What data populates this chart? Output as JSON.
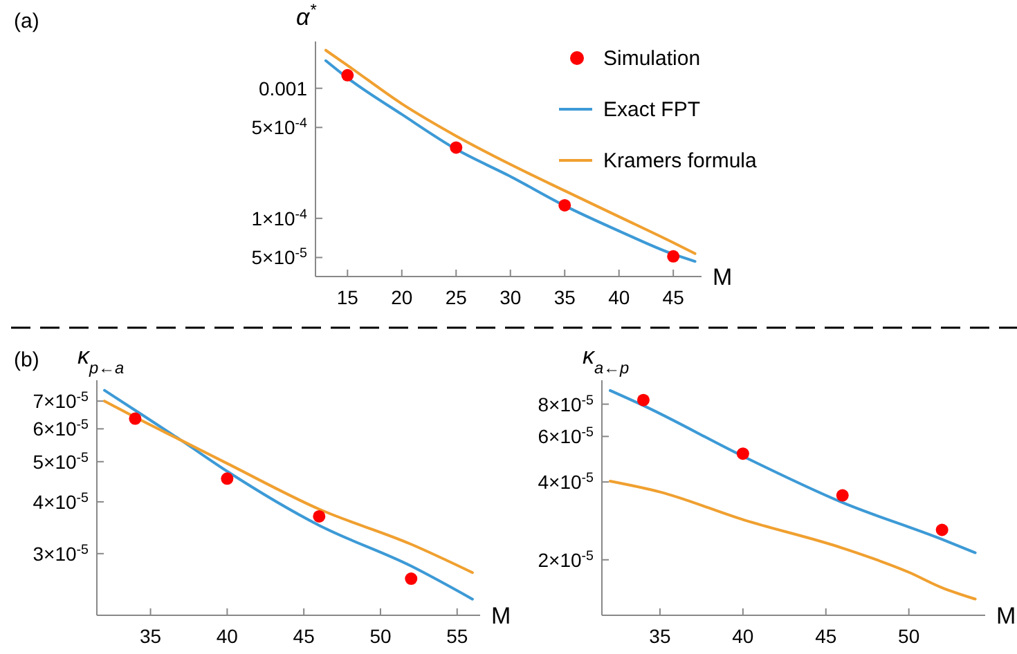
{
  "chart_data": [
    {
      "type": "line",
      "annotations": [
        "(a)"
      ],
      "ylabel": "α$^{*}$",
      "xlabel": "M",
      "log": true,
      "legend": "top right",
      "xlim": [
        12.05,
        47.6
      ],
      "xticks": [
        15,
        20,
        25,
        30,
        35,
        40,
        45
      ],
      "ylim": [
        3.57e-05,
        0.00229
      ],
      "yticks": [
        {
          "value": 5e-05,
          "label": "5×10$^{-5}$"
        },
        {
          "value": 0.0001,
          "label": "1×10$^{-4}$"
        },
        {
          "value": 0.0005,
          "label": "5×10$^{-4}$"
        },
        0.001
      ],
      "series": [
        {
          "name": "Simulation",
          "type": "scatter",
          "marker": "circle",
          "color": "#ff0000",
          "x": [
            15,
            25,
            35,
            45
          ],
          "values": [
            0.00126,
            0.00035,
            0.000126,
            5.1e-05
          ]
        },
        {
          "name": "Exact FPT",
          "color": "#3d9ad6",
          "x": [
            13,
            15,
            20,
            25,
            30,
            35,
            40,
            45,
            47
          ],
          "values": [
            0.00163,
            0.0012,
            0.00063,
            0.00034,
            0.00021,
            0.000125,
            8e-05,
            5.3e-05,
            4.67e-05
          ]
        },
        {
          "name": "Kramers formula",
          "color": "#f0a030",
          "x": [
            13,
            15,
            20,
            25,
            30,
            35,
            40,
            45,
            47
          ],
          "values": [
            0.00196,
            0.0015,
            0.00076,
            0.00043,
            0.00026,
            0.000163,
            0.000103,
            6.5e-05,
            5.36e-05
          ]
        }
      ]
    },
    {
      "type": "line",
      "annotations": [
        "(b)"
      ],
      "ylabel": "κ$_{p←a}$",
      "xlabel": "M",
      "log": true,
      "xlim": [
        31.5,
        56.5
      ],
      "xticks": [
        35,
        40,
        45,
        50,
        55
      ],
      "ylim": [
        2.13e-05,
        7.86e-05
      ],
      "yticks": [
        {
          "value": 3e-05,
          "label": "3×10$^{-5}$"
        },
        {
          "value": 4e-05,
          "label": "4×10$^{-5}$"
        },
        {
          "value": 5e-05,
          "label": "5×10$^{-5}$"
        },
        {
          "value": 6e-05,
          "label": "6×10$^{-5}$"
        },
        {
          "value": 7e-05,
          "label": "7×10$^{-5}$"
        }
      ],
      "series": [
        {
          "type": "scatter",
          "marker": "circle",
          "color": "#ff0000",
          "x": [
            34,
            40,
            46,
            52
          ],
          "values": [
            6.35e-05,
            4.55e-05,
            3.69e-05,
            2.61e-05
          ]
        },
        {
          "color": "#3d9ad6",
          "x": [
            32,
            34,
            37,
            40,
            46,
            52,
            56
          ],
          "values": [
            7.43e-05,
            6.65e-05,
            5.63e-05,
            4.74e-05,
            3.51e-05,
            2.8e-05,
            2.33e-05
          ]
        },
        {
          "color": "#f0a030",
          "x": [
            32,
            34,
            37,
            40,
            46,
            52,
            56
          ],
          "values": [
            7e-05,
            6.4e-05,
            5.63e-05,
            4.95e-05,
            3.84e-05,
            3.16e-05,
            2.7e-05
          ]
        }
      ]
    },
    {
      "type": "line",
      "ylabel": "κ$_{a←p}$",
      "xlabel": "M",
      "log": true,
      "xlim": [
        31.5,
        54.6
      ],
      "xticks": [
        35,
        40,
        45,
        50
      ],
      "ylim": [
        1.22e-05,
        9.9e-05
      ],
      "yticks": [
        {
          "value": 2e-05,
          "label": "2×10$^{-5}$"
        },
        {
          "value": 4e-05,
          "label": "4×10$^{-5}$"
        },
        {
          "value": 6e-05,
          "label": "6×10$^{-5}$"
        },
        {
          "value": 8e-05,
          "label": "8×10$^{-5}$"
        }
      ],
      "series": [
        {
          "type": "scatter",
          "marker": "circle",
          "color": "#ff0000",
          "x": [
            34,
            40,
            46,
            52
          ],
          "values": [
            8.3e-05,
            5.15e-05,
            3.55e-05,
            2.61e-05
          ]
        },
        {
          "color": "#3d9ad6",
          "x": [
            32,
            34,
            40,
            46,
            52,
            54
          ],
          "values": [
            9.03e-05,
            7.9e-05,
            5.03e-05,
            3.33e-05,
            2.4e-05,
            2.13e-05
          ]
        },
        {
          "color": "#f0a030",
          "x": [
            32,
            35,
            40,
            46,
            50,
            52,
            54
          ],
          "values": [
            4.03e-05,
            3.66e-05,
            2.86e-05,
            2.22e-05,
            1.79e-05,
            1.56e-05,
            1.41e-05
          ]
        }
      ]
    }
  ]
}
